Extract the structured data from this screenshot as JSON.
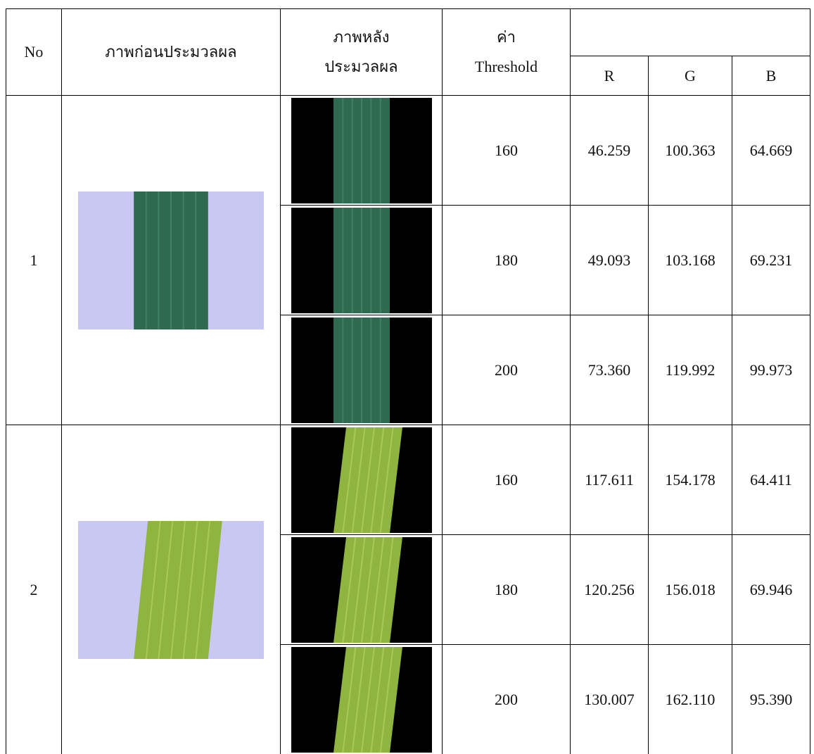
{
  "header": {
    "no": "No",
    "before": "ภาพก่อนประมวลผล",
    "after": [
      "ภาพหลัง",
      "ประมวลผล"
    ],
    "threshold": [
      "ค่า",
      "Threshold"
    ],
    "r": "R",
    "g": "G",
    "b": "B"
  },
  "groups": [
    {
      "no": "1",
      "rows": [
        [
          "160",
          "46.259",
          "100.363",
          "64.669"
        ],
        [
          "180",
          "49.093",
          "103.168",
          "69.231"
        ],
        [
          "200",
          "73.360",
          "119.992",
          "99.973"
        ]
      ]
    },
    {
      "no": "2",
      "rows": [
        [
          "160",
          "117.611",
          "154.178",
          "64.411"
        ],
        [
          "180",
          "120.256",
          "156.018",
          "69.946"
        ],
        [
          "200",
          "130.007",
          "162.110",
          "95.390"
        ]
      ]
    }
  ]
}
